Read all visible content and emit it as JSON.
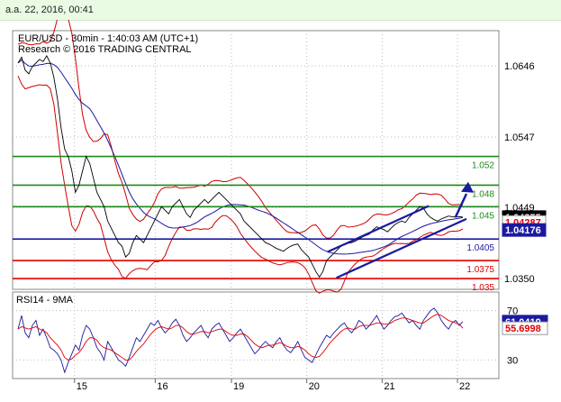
{
  "header": {
    "timestamp": "a.a. 22, 2016, 00:41"
  },
  "chart_data": [
    {
      "type": "line",
      "title": "EUR/USD - 30min - 1:40:03 AM (UTC+1)",
      "subtitle": "Research © 2016 TRADING CENTRAL",
      "x_ticks": [
        "15",
        "16",
        "19",
        "20",
        "21",
        "22"
      ],
      "y_ticks": [
        "1.0646",
        "1.0547",
        "1.0449",
        "1.0350"
      ],
      "ylim": [
        1.0335,
        1.0695
      ],
      "levels": [
        {
          "label": "1.052",
          "value": 1.052,
          "color": "#1e8a1e"
        },
        {
          "label": "1.048",
          "value": 1.048,
          "color": "#1e8a1e"
        },
        {
          "label": "1.045",
          "value": 1.045,
          "color": "#1e8a1e"
        },
        {
          "label": "1.0405",
          "value": 1.0405,
          "color": "#1a1aa0"
        },
        {
          "label": "1.0375",
          "value": 1.0375,
          "color": "#e00000"
        },
        {
          "label": "1.035",
          "value": 1.035,
          "color": "#e00000"
        }
      ],
      "price_tags": [
        {
          "label": "1.04355",
          "value": 1.04355,
          "bg": "#000000",
          "fg": "#ffffff"
        },
        {
          "label": "1.04287",
          "value": 1.04287,
          "bg": "#ffffff",
          "fg": "#e00000"
        },
        {
          "label": "1.04176",
          "value": 1.04176,
          "bg": "#1a1aa0",
          "fg": "#ffffff"
        }
      ],
      "series": [
        {
          "x": [
            0,
            4,
            8,
            12,
            16,
            20,
            24,
            28,
            32,
            36,
            40,
            44,
            48,
            52,
            56,
            60,
            64,
            68,
            72,
            76,
            80,
            84,
            88,
            92,
            96,
            100,
            104,
            108,
            112,
            116,
            120,
            124,
            128,
            132,
            136,
            140,
            144,
            148,
            152,
            156,
            160,
            164,
            168,
            172,
            176,
            180,
            184,
            188,
            192,
            196,
            200,
            204,
            208,
            212,
            216,
            220,
            224,
            228,
            232,
            236,
            240,
            244,
            248,
            252,
            256,
            260,
            264,
            268,
            272,
            276,
            280,
            284,
            288,
            292,
            296,
            300,
            304,
            308,
            312,
            316,
            320,
            324,
            328,
            332,
            336,
            340,
            344,
            348,
            352,
            356,
            360,
            364,
            368,
            372,
            376,
            380,
            384,
            388,
            392,
            396,
            400,
            404,
            408,
            412,
            416,
            420,
            424,
            428,
            432,
            436,
            440,
            444,
            448,
            452,
            456,
            460,
            464,
            468,
            472,
            476,
            480,
            484,
            488,
            492,
            496
          ],
          "values": [
            1.065,
            1.0658,
            1.064,
            1.0635,
            1.0645,
            1.065,
            1.0655,
            1.0652,
            1.066,
            1.065,
            1.063,
            1.06,
            1.056,
            1.053,
            1.052,
            1.05,
            1.047,
            1.048,
            1.05,
            1.052,
            1.051,
            1.049,
            1.047,
            1.046,
            1.045,
            1.043,
            1.042,
            1.041,
            1.04,
            1.0395,
            1.038,
            1.0385,
            1.04,
            1.041,
            1.0405,
            1.04,
            1.041,
            1.042,
            1.043,
            1.044,
            1.045,
            1.0445,
            1.044,
            1.045,
            1.0455,
            1.046,
            1.045,
            1.044,
            1.0435,
            1.0445,
            1.045,
            1.0455,
            1.046,
            1.0455,
            1.046,
            1.0465,
            1.047,
            1.0465,
            1.046,
            1.0455,
            1.045,
            1.0445,
            1.044,
            1.043,
            1.0425,
            1.042,
            1.0415,
            1.041,
            1.0405,
            1.04,
            1.0398,
            1.0395,
            1.0392,
            1.039,
            1.0388,
            1.0392,
            1.0395,
            1.0397,
            1.0398,
            1.039,
            1.0385,
            1.038,
            1.037,
            1.036,
            1.0352,
            1.036,
            1.0375,
            1.038,
            1.0385,
            1.039,
            1.0395,
            1.0397,
            1.0399,
            1.04,
            1.0402,
            1.0405,
            1.0408,
            1.041,
            1.0412,
            1.0418,
            1.0422,
            1.042,
            1.0418,
            1.0415,
            1.042,
            1.0425,
            1.0428,
            1.043,
            1.0428,
            1.0435,
            1.044,
            1.0445,
            1.045,
            1.0448,
            1.044,
            1.0435,
            1.0432,
            1.043,
            1.0433,
            1.0435,
            1.0437,
            1.0436,
            1.04355,
            1.0436,
            1.04355
          ]
        }
      ]
    },
    {
      "type": "line",
      "title": "RSI14 - 9MA",
      "y_ticks": [
        "70",
        "30"
      ],
      "ylim": [
        15,
        85
      ],
      "series": [
        {
          "name": "RSI14",
          "x": [
            0,
            4,
            8,
            12,
            16,
            20,
            24,
            28,
            32,
            36,
            40,
            44,
            48,
            52,
            56,
            60,
            64,
            68,
            72,
            76,
            80,
            84,
            88,
            92,
            96,
            100,
            104,
            108,
            112,
            116,
            120,
            124,
            128,
            132,
            136,
            140,
            144,
            148,
            152,
            156,
            160,
            164,
            168,
            172,
            176,
            180,
            184,
            188,
            192,
            196,
            200,
            204,
            208,
            212,
            216,
            220,
            224,
            228,
            232,
            236,
            240,
            244,
            248,
            252,
            256,
            260,
            264,
            268,
            272,
            276,
            280,
            284,
            288,
            292,
            296,
            300,
            304,
            308,
            312,
            316,
            320,
            324,
            328,
            332,
            336,
            340,
            344,
            348,
            352,
            356,
            360,
            364,
            368,
            372,
            376,
            380,
            384,
            388,
            392,
            396,
            400,
            404,
            408,
            412,
            416,
            420,
            424,
            428,
            432,
            436,
            440,
            444,
            448,
            452,
            456,
            460,
            464,
            468,
            472,
            476,
            480,
            484,
            488,
            492,
            496
          ],
          "values": [
            55,
            66,
            52,
            48,
            58,
            62,
            50,
            55,
            48,
            40,
            38,
            35,
            30,
            20,
            28,
            35,
            42,
            38,
            50,
            58,
            55,
            48,
            40,
            36,
            30,
            45,
            40,
            35,
            30,
            28,
            25,
            32,
            40,
            48,
            45,
            50,
            55,
            60,
            58,
            62,
            56,
            52,
            55,
            60,
            63,
            58,
            50,
            45,
            48,
            52,
            55,
            58,
            52,
            48,
            55,
            58,
            60,
            55,
            50,
            45,
            48,
            52,
            55,
            50,
            45,
            40,
            35,
            38,
            42,
            45,
            42,
            40,
            45,
            48,
            42,
            38,
            36,
            40,
            45,
            38,
            32,
            30,
            28,
            34,
            40,
            45,
            50,
            48,
            52,
            55,
            58,
            60,
            55,
            52,
            56,
            62,
            60,
            55,
            58,
            62,
            66,
            60,
            55,
            58,
            62,
            65,
            66,
            68,
            64,
            60,
            62,
            58,
            55,
            62,
            66,
            70,
            72,
            68,
            62,
            58,
            55,
            60,
            62,
            58,
            61.0419
          ]
        },
        {
          "name": "9MA",
          "x": [
            0,
            4,
            8,
            12,
            16,
            20,
            24,
            28,
            32,
            36,
            40,
            44,
            48,
            52,
            56,
            60,
            64,
            68,
            72,
            76,
            80,
            84,
            88,
            92,
            96,
            100,
            104,
            108,
            112,
            116,
            120,
            124,
            128,
            132,
            136,
            140,
            144,
            148,
            152,
            156,
            160,
            164,
            168,
            172,
            176,
            180,
            184,
            188,
            192,
            196,
            200,
            204,
            208,
            212,
            216,
            220,
            224,
            228,
            232,
            236,
            240,
            244,
            248,
            252,
            256,
            260,
            264,
            268,
            272,
            276,
            280,
            284,
            288,
            292,
            296,
            300,
            304,
            308,
            312,
            316,
            320,
            324,
            328,
            332,
            336,
            340,
            344,
            348,
            352,
            356,
            360,
            364,
            368,
            372,
            376,
            380,
            384,
            388,
            392,
            396,
            400,
            404,
            408,
            412,
            416,
            420,
            424,
            428,
            432,
            436,
            440,
            444,
            448,
            452,
            456,
            460,
            464,
            468,
            472,
            476,
            480,
            484,
            488,
            492,
            496
          ],
          "values": [
            55,
            57,
            56,
            55,
            56,
            57,
            55,
            54,
            52,
            48,
            45,
            42,
            38,
            32,
            30,
            31,
            34,
            36,
            40,
            45,
            48,
            48,
            46,
            42,
            40,
            39,
            38,
            36,
            34,
            32,
            30,
            30,
            33,
            37,
            40,
            43,
            47,
            51,
            54,
            56,
            57,
            56,
            55,
            56,
            58,
            58,
            56,
            53,
            51,
            51,
            52,
            53,
            53,
            52,
            53,
            54,
            55,
            55,
            53,
            51,
            50,
            50,
            51,
            51,
            49,
            46,
            43,
            41,
            40,
            41,
            42,
            42,
            43,
            44,
            43,
            41,
            40,
            40,
            41,
            40,
            38,
            35,
            33,
            32,
            33,
            36,
            40,
            44,
            47,
            50,
            53,
            55,
            56,
            55,
            55,
            57,
            58,
            58,
            58,
            59,
            60,
            60,
            59,
            59,
            60,
            62,
            63,
            64,
            64,
            63,
            62,
            61,
            60,
            60,
            62,
            64,
            66,
            67,
            66,
            64,
            62,
            61,
            60,
            59,
            55.6998
          ]
        }
      ],
      "price_tags": [
        {
          "label": "61.0419",
          "value": 61.0419,
          "bg": "#1a1aa0",
          "fg": "#ffffff"
        },
        {
          "label": "55.6998",
          "value": 55.6998,
          "bg": "#ffffff",
          "fg": "#e00000"
        }
      ]
    }
  ],
  "colors": {
    "price": "#1a1aa0",
    "bands": "#d00000",
    "ma": "#1a1aa0",
    "channel": "#1a1aa0",
    "grid": "#bbbbbb",
    "rsi": "#1a1aa0",
    "rsi_ma": "#e00000"
  }
}
